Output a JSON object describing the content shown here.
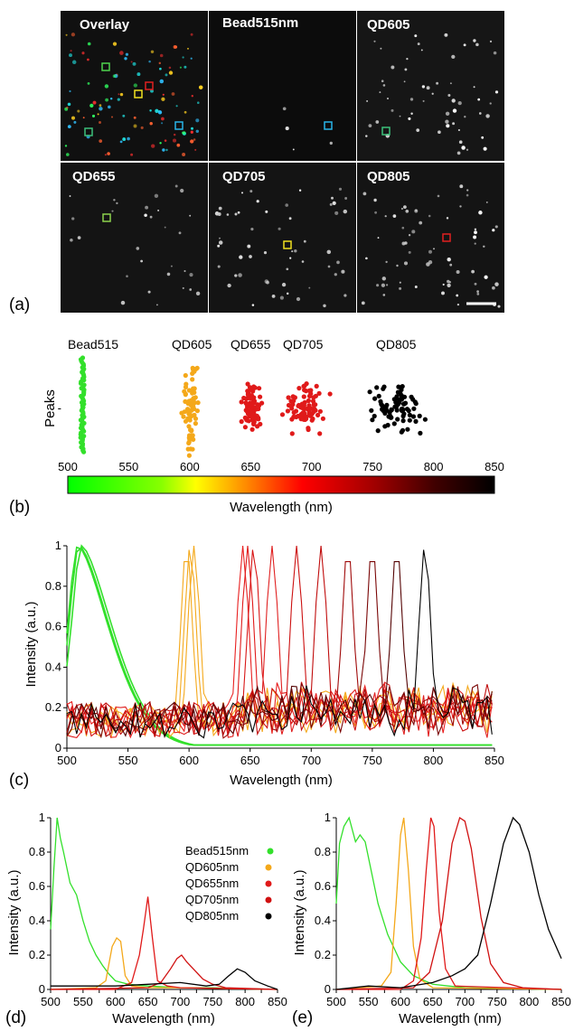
{
  "panel_labels": {
    "a": "(a)",
    "b": "(b)",
    "c": "(c)",
    "d": "(d)",
    "e": "(e)"
  },
  "images": [
    {
      "label": "Overlay"
    },
    {
      "label": "Bead515nm"
    },
    {
      "label": "QD605"
    },
    {
      "label": "QD655"
    },
    {
      "label": "QD705"
    },
    {
      "label": "QD805"
    }
  ],
  "colors": {
    "bead515": "#33e02b",
    "qd605": "#f4a81a",
    "qd655": "#e01a1a",
    "qd705": "#c80f0f",
    "qd805": "#000000",
    "box_green": "#4dd24d",
    "box_red": "#e02020",
    "box_yellow": "#f0e020",
    "box_cyan": "#28b4e8"
  },
  "chart_data": [
    {
      "id": "b",
      "type": "scatter",
      "ylabel": "Peaks",
      "y_ticks": [
        "-"
      ],
      "xlabel": "Wavelength (nm)",
      "x_ticks": [
        "500",
        "550",
        "600",
        "650",
        "700",
        "750",
        "800",
        "850"
      ],
      "xlim": [
        500,
        850
      ],
      "colorbar": "green-yellow-red-black",
      "groups": [
        {
          "name": "Bead515",
          "center": 512,
          "spread": 3,
          "n": 60,
          "color": "#33e02b"
        },
        {
          "name": "QD605",
          "center": 601,
          "spread": 8,
          "n": 70,
          "color": "#f4a81a"
        },
        {
          "name": "QD655",
          "center": 650,
          "spread": 10,
          "n": 90,
          "color": "#e01a1a"
        },
        {
          "name": "QD705",
          "center": 695,
          "spread": 20,
          "n": 80,
          "color": "#e01a1a"
        },
        {
          "name": "QD805",
          "center": 770,
          "spread": 25,
          "n": 80,
          "color": "#000000"
        }
      ]
    },
    {
      "id": "c",
      "type": "line",
      "xlabel": "Wavelength (nm)",
      "ylabel": "Intensity (a.u.)",
      "xlim": [
        500,
        850
      ],
      "ylim": [
        0,
        1
      ],
      "x_ticks": [
        "500",
        "550",
        "600",
        "650",
        "700",
        "750",
        "800",
        "850"
      ],
      "y_ticks": [
        "0",
        "0.2",
        "0.4",
        "0.6",
        "0.8",
        "1"
      ],
      "series": [
        {
          "color": "#33e02b",
          "peak": 510,
          "kind": "bead"
        },
        {
          "color": "#33e02b",
          "peak": 512,
          "kind": "bead"
        },
        {
          "color": "#33e02b",
          "peak": 509,
          "kind": "bead"
        },
        {
          "color": "#f4a81a",
          "peak": 598,
          "kind": "qd"
        },
        {
          "color": "#f4a81a",
          "peak": 601,
          "kind": "qd"
        },
        {
          "color": "#f4a81a",
          "peak": 604,
          "kind": "qd"
        },
        {
          "color": "#e82020",
          "peak": 644,
          "kind": "qd"
        },
        {
          "color": "#e01a1a",
          "peak": 648,
          "kind": "qd"
        },
        {
          "color": "#d81515",
          "peak": 653,
          "kind": "qd"
        },
        {
          "color": "#e02020",
          "peak": 668,
          "kind": "qd"
        },
        {
          "color": "#cc1010",
          "peak": 688,
          "kind": "qd"
        },
        {
          "color": "#c00c0c",
          "peak": 708,
          "kind": "qd"
        },
        {
          "color": "#a00a0a",
          "peak": 730,
          "kind": "qd"
        },
        {
          "color": "#7a0606",
          "peak": 750,
          "kind": "qd"
        },
        {
          "color": "#550404",
          "peak": 770,
          "kind": "qd"
        },
        {
          "color": "#000000",
          "peak": 793,
          "kind": "qd"
        }
      ]
    },
    {
      "id": "d",
      "type": "line",
      "xlabel": "Wavelength (nm)",
      "ylabel": "Intensity (a.u.)",
      "xlim": [
        500,
        850
      ],
      "ylim": [
        0,
        1
      ],
      "x_ticks": [
        "500",
        "525",
        "550",
        "575",
        "600",
        "625",
        "650",
        "675",
        "700",
        "725",
        "750",
        "775",
        "800",
        "825",
        "850"
      ],
      "y_ticks": [
        "0",
        "0.2",
        "0.4",
        "0.6",
        "0.8",
        "1"
      ],
      "legend": [
        {
          "name": "Bead515nm",
          "color": "#33e02b"
        },
        {
          "name": "QD605nm",
          "color": "#f4a81a"
        },
        {
          "name": "QD655nm",
          "color": "#e01a1a"
        },
        {
          "name": "QD705nm",
          "color": "#d01010"
        },
        {
          "name": "QD805nm",
          "color": "#000000"
        }
      ],
      "series": [
        {
          "name": "Bead515nm",
          "color": "#33e02b",
          "x": [
            500,
            505,
            510,
            515,
            520,
            530,
            540,
            550,
            560,
            570,
            580,
            590,
            600,
            620,
            650,
            700,
            750,
            850
          ],
          "y": [
            0.35,
            0.7,
            1.0,
            0.88,
            0.8,
            0.62,
            0.55,
            0.4,
            0.28,
            0.2,
            0.14,
            0.09,
            0.05,
            0.03,
            0.02,
            0.01,
            0.01,
            0.0
          ]
        },
        {
          "name": "QD605nm",
          "color": "#f4a81a",
          "x": [
            500,
            570,
            585,
            595,
            602,
            608,
            615,
            625,
            650,
            700,
            850
          ],
          "y": [
            0.0,
            0.01,
            0.05,
            0.25,
            0.3,
            0.28,
            0.08,
            0.02,
            0.01,
            0.01,
            0.0
          ]
        },
        {
          "name": "QD655nm",
          "color": "#e01a1a",
          "x": [
            500,
            600,
            625,
            637,
            643,
            650,
            657,
            665,
            680,
            700,
            850
          ],
          "y": [
            0.0,
            0.0,
            0.04,
            0.2,
            0.35,
            0.54,
            0.3,
            0.05,
            0.02,
            0.01,
            0.0
          ]
        },
        {
          "name": "QD705nm",
          "color": "#d01010",
          "x": [
            500,
            650,
            670,
            685,
            695,
            702,
            710,
            720,
            735,
            750,
            770,
            850
          ],
          "y": [
            0.0,
            0.01,
            0.04,
            0.12,
            0.18,
            0.2,
            0.16,
            0.12,
            0.06,
            0.03,
            0.01,
            0.0
          ]
        },
        {
          "name": "QD805nm",
          "color": "#000000",
          "x": [
            500,
            560,
            600,
            650,
            700,
            740,
            760,
            775,
            788,
            800,
            815,
            835,
            850
          ],
          "y": [
            0.02,
            0.02,
            0.02,
            0.03,
            0.04,
            0.02,
            0.03,
            0.08,
            0.12,
            0.1,
            0.05,
            0.02,
            0.0
          ]
        }
      ]
    },
    {
      "id": "e",
      "type": "line",
      "xlabel": "Wavelength (nm)",
      "ylabel": "Intensity (a.u.)",
      "xlim": [
        500,
        850
      ],
      "ylim": [
        0,
        1
      ],
      "x_ticks": [
        "500",
        "525",
        "550",
        "575",
        "600",
        "625",
        "650",
        "675",
        "700",
        "725",
        "750",
        "775",
        "800",
        "825",
        "850"
      ],
      "y_ticks": [
        "0",
        "0.2",
        "0.4",
        "0.6",
        "0.8",
        "1"
      ],
      "series": [
        {
          "name": "Bead515",
          "color": "#33e02b",
          "x": [
            500,
            505,
            512,
            520,
            530,
            537,
            545,
            555,
            565,
            580,
            600,
            620,
            650,
            700,
            850
          ],
          "y": [
            0.5,
            0.85,
            0.95,
            1.0,
            0.86,
            0.9,
            0.86,
            0.68,
            0.5,
            0.32,
            0.16,
            0.08,
            0.03,
            0.01,
            0.0
          ]
        },
        {
          "name": "QD605",
          "color": "#f4a81a",
          "x": [
            500,
            570,
            585,
            593,
            600,
            605,
            612,
            620,
            630,
            650,
            850
          ],
          "y": [
            0.0,
            0.02,
            0.1,
            0.5,
            0.9,
            1.0,
            0.7,
            0.25,
            0.06,
            0.01,
            0.0
          ]
        },
        {
          "name": "QD655",
          "color": "#e01a1a",
          "x": [
            500,
            600,
            620,
            632,
            640,
            647,
            652,
            660,
            670,
            685,
            850
          ],
          "y": [
            0.0,
            0.0,
            0.05,
            0.3,
            0.7,
            1.0,
            0.95,
            0.45,
            0.12,
            0.02,
            0.0
          ]
        },
        {
          "name": "QD705",
          "color": "#d01010",
          "x": [
            500,
            620,
            645,
            665,
            680,
            692,
            700,
            710,
            725,
            740,
            760,
            790,
            850
          ],
          "y": [
            0.0,
            0.01,
            0.1,
            0.4,
            0.85,
            1.0,
            0.98,
            0.82,
            0.42,
            0.15,
            0.04,
            0.01,
            0.0
          ]
        },
        {
          "name": "QD805",
          "color": "#000000",
          "x": [
            500,
            550,
            600,
            650,
            680,
            700,
            720,
            740,
            760,
            775,
            785,
            800,
            815,
            830,
            850
          ],
          "y": [
            0.0,
            0.02,
            0.01,
            0.04,
            0.08,
            0.12,
            0.2,
            0.5,
            0.85,
            1.0,
            0.96,
            0.8,
            0.55,
            0.35,
            0.18
          ]
        }
      ]
    }
  ]
}
